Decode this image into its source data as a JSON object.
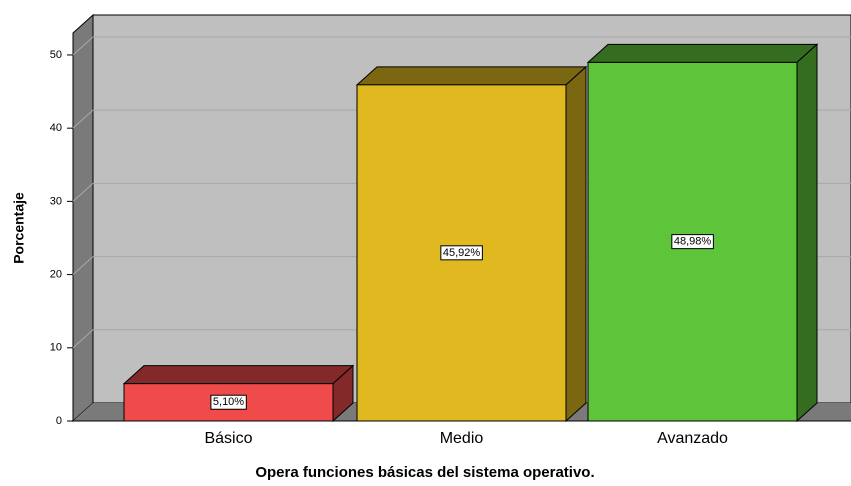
{
  "chart_data": {
    "type": "bar3d",
    "x_label": "Opera funciones básicas del sistema operativo.",
    "y_label": "Porcentaje",
    "categories": [
      "Básico",
      "Medio",
      "Avanzado"
    ],
    "values": [
      5.1,
      45.92,
      48.98
    ],
    "value_labels": [
      "5,10%",
      "45,92%",
      "48,98%"
    ],
    "colors": [
      "#ef4b4b",
      "#e0b920",
      "#5ec43a"
    ],
    "ylim": [
      0,
      53
    ],
    "yticks": [
      0,
      10,
      20,
      30,
      40,
      50
    ],
    "grid": true
  }
}
